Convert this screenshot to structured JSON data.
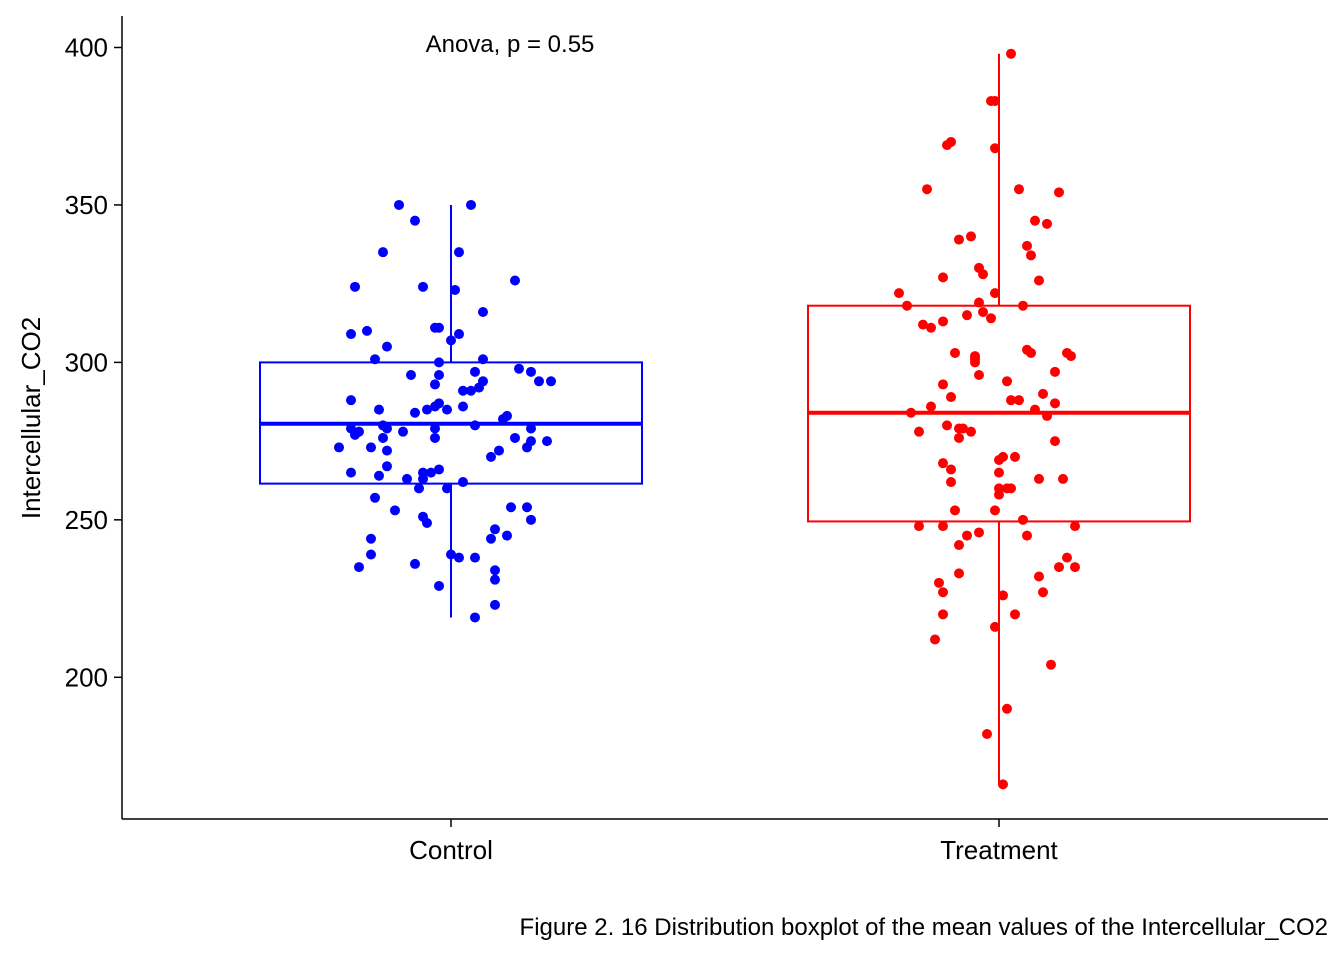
{
  "chart_data": {
    "type": "boxplot",
    "ylabel": "Intercellular_CO2",
    "xlabel": "",
    "ylim": [
      155,
      410
    ],
    "yticks": [
      200,
      250,
      300,
      350,
      400
    ],
    "categories": [
      "Control",
      "Treatment"
    ],
    "annotation": "Anova, p = 0.55",
    "legend": "none",
    "grid": false,
    "groups": [
      {
        "name": "Control",
        "color": "#0000ff",
        "box": {
          "min": 219,
          "q1": 261.5,
          "median": 280.5,
          "q3": 300,
          "max": 350
        },
        "points": [
          [
            0.05,
            350
          ],
          [
            -0.13,
            350
          ],
          [
            0.16,
            326
          ],
          [
            -0.09,
            345
          ],
          [
            -0.17,
            335
          ],
          [
            0.02,
            335
          ],
          [
            -0.24,
            324
          ],
          [
            -0.07,
            324
          ],
          [
            0.01,
            323
          ],
          [
            0.08,
            316
          ],
          [
            -0.21,
            310
          ],
          [
            -0.25,
            309
          ],
          [
            -0.04,
            311
          ],
          [
            -0.03,
            311
          ],
          [
            0.02,
            309
          ],
          [
            0.0,
            307
          ],
          [
            -0.16,
            305
          ],
          [
            0.08,
            301
          ],
          [
            -0.19,
            301
          ],
          [
            -0.03,
            300
          ],
          [
            0.17,
            298
          ],
          [
            -0.1,
            296
          ],
          [
            0.06,
            297
          ],
          [
            0.2,
            297
          ],
          [
            0.25,
            294
          ],
          [
            -0.03,
            296
          ],
          [
            -0.04,
            293
          ],
          [
            0.08,
            294
          ],
          [
            -0.25,
            288
          ],
          [
            0.05,
            291
          ],
          [
            0.07,
            292
          ],
          [
            0.22,
            294
          ],
          [
            0.03,
            291
          ],
          [
            -0.03,
            287
          ],
          [
            -0.04,
            286
          ],
          [
            -0.18,
            285
          ],
          [
            0.03,
            286
          ],
          [
            -0.06,
            285
          ],
          [
            -0.01,
            285
          ],
          [
            -0.09,
            284
          ],
          [
            0.14,
            283
          ],
          [
            0.13,
            282
          ],
          [
            0.06,
            280
          ],
          [
            -0.16,
            279
          ],
          [
            -0.25,
            279
          ],
          [
            -0.23,
            278
          ],
          [
            -0.17,
            280
          ],
          [
            -0.04,
            279
          ],
          [
            -0.12,
            278
          ],
          [
            -0.24,
            277
          ],
          [
            -0.17,
            276
          ],
          [
            -0.04,
            276
          ],
          [
            0.2,
            279
          ],
          [
            0.16,
            276
          ],
          [
            0.2,
            275
          ],
          [
            0.24,
            275
          ],
          [
            -0.2,
            273
          ],
          [
            -0.16,
            272
          ],
          [
            0.19,
            273
          ],
          [
            0.12,
            272
          ],
          [
            0.1,
            270
          ],
          [
            -0.16,
            267
          ],
          [
            -0.03,
            266
          ],
          [
            -0.05,
            265
          ],
          [
            -0.07,
            265
          ],
          [
            -0.18,
            264
          ],
          [
            -0.11,
            263
          ],
          [
            -0.07,
            263
          ],
          [
            -0.01,
            260
          ],
          [
            -0.25,
            265
          ],
          [
            -0.28,
            273
          ],
          [
            0.03,
            262
          ],
          [
            -0.08,
            260
          ],
          [
            -0.19,
            257
          ],
          [
            -0.14,
            253
          ],
          [
            0.15,
            254
          ],
          [
            -0.07,
            251
          ],
          [
            0.19,
            254
          ],
          [
            -0.06,
            249
          ],
          [
            0.11,
            247
          ],
          [
            0.14,
            245
          ],
          [
            -0.2,
            244
          ],
          [
            0.2,
            250
          ],
          [
            0.1,
            244
          ],
          [
            0.0,
            239
          ],
          [
            -0.2,
            239
          ],
          [
            0.06,
            238
          ],
          [
            -0.23,
            235
          ],
          [
            -0.09,
            236
          ],
          [
            0.11,
            234
          ],
          [
            0.02,
            238
          ],
          [
            0.11,
            231
          ],
          [
            -0.03,
            229
          ],
          [
            0.11,
            223
          ],
          [
            0.06,
            219
          ]
        ]
      },
      {
        "name": "Treatment",
        "color": "#ff0000",
        "box": {
          "min": 166,
          "q1": 249.5,
          "median": 284,
          "q3": 318,
          "max": 398
        },
        "points": [
          [
            0.03,
            398
          ],
          [
            -0.02,
            383
          ],
          [
            -0.01,
            383
          ],
          [
            -0.12,
            370
          ],
          [
            -0.13,
            369
          ],
          [
            -0.01,
            368
          ],
          [
            -0.18,
            355
          ],
          [
            0.15,
            354
          ],
          [
            0.05,
            355
          ],
          [
            0.12,
            344
          ],
          [
            0.09,
            345
          ],
          [
            -0.07,
            340
          ],
          [
            -0.1,
            339
          ],
          [
            0.07,
            337
          ],
          [
            0.08,
            334
          ],
          [
            0.1,
            326
          ],
          [
            -0.05,
            330
          ],
          [
            -0.04,
            328
          ],
          [
            -0.14,
            327
          ],
          [
            -0.01,
            322
          ],
          [
            -0.25,
            322
          ],
          [
            -0.05,
            319
          ],
          [
            0.06,
            318
          ],
          [
            -0.23,
            318
          ],
          [
            -0.04,
            316
          ],
          [
            -0.08,
            315
          ],
          [
            -0.02,
            314
          ],
          [
            -0.14,
            313
          ],
          [
            -0.19,
            312
          ],
          [
            -0.17,
            311
          ],
          [
            0.17,
            303
          ],
          [
            0.07,
            304
          ],
          [
            0.08,
            303
          ],
          [
            -0.11,
            303
          ],
          [
            0.18,
            302
          ],
          [
            -0.06,
            302
          ],
          [
            -0.06,
            301
          ],
          [
            -0.06,
            300
          ],
          [
            0.14,
            297
          ],
          [
            -0.05,
            296
          ],
          [
            0.02,
            294
          ],
          [
            0.03,
            288
          ],
          [
            -0.12,
            289
          ],
          [
            0.11,
            290
          ],
          [
            0.05,
            288
          ],
          [
            -0.14,
            293
          ],
          [
            0.09,
            285
          ],
          [
            0.14,
            287
          ],
          [
            0.12,
            283
          ],
          [
            -0.22,
            284
          ],
          [
            -0.17,
            286
          ],
          [
            -0.2,
            278
          ],
          [
            -0.09,
            279
          ],
          [
            -0.13,
            280
          ],
          [
            -0.1,
            276
          ],
          [
            0.14,
            275
          ],
          [
            -0.1,
            279
          ],
          [
            -0.07,
            278
          ],
          [
            0.01,
            270
          ],
          [
            0.04,
            270
          ],
          [
            0.0,
            269
          ],
          [
            -0.14,
            268
          ],
          [
            -0.12,
            266
          ],
          [
            0.0,
            265
          ],
          [
            0.1,
            263
          ],
          [
            0.16,
            263
          ],
          [
            -0.12,
            262
          ],
          [
            0.03,
            260
          ],
          [
            0.0,
            260
          ],
          [
            -0.01,
            253
          ],
          [
            -0.11,
            253
          ],
          [
            0.02,
            260
          ],
          [
            0.0,
            258
          ],
          [
            0.19,
            248
          ],
          [
            -0.2,
            248
          ],
          [
            -0.14,
            248
          ],
          [
            -0.05,
            246
          ],
          [
            -0.08,
            245
          ],
          [
            0.06,
            250
          ],
          [
            0.07,
            245
          ],
          [
            -0.1,
            242
          ],
          [
            0.17,
            238
          ],
          [
            0.15,
            235
          ],
          [
            0.19,
            235
          ],
          [
            0.1,
            232
          ],
          [
            -0.1,
            233
          ],
          [
            -0.15,
            230
          ],
          [
            0.11,
            227
          ],
          [
            0.01,
            226
          ],
          [
            -0.14,
            227
          ],
          [
            -0.14,
            220
          ],
          [
            0.04,
            220
          ],
          [
            -0.16,
            212
          ],
          [
            -0.01,
            216
          ],
          [
            0.13,
            204
          ],
          [
            0.02,
            190
          ],
          [
            -0.03,
            182
          ],
          [
            0.01,
            166
          ]
        ]
      }
    ]
  },
  "caption": "Figure 2. 16 Distribution boxplot of the mean values of the Intercellular_CO2"
}
